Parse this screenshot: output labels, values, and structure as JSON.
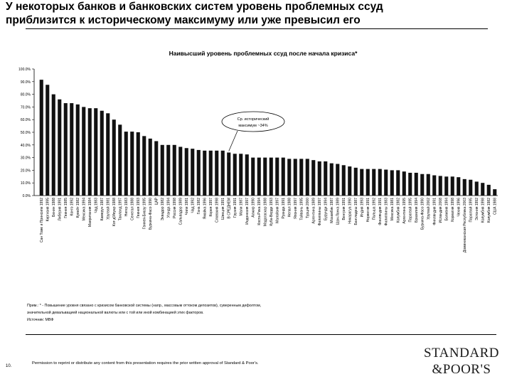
{
  "slide": {
    "title_line1": "У некоторых банков и банковских систем уровень проблемных ссуд",
    "title_line2": "приблизится к историческому максимуму или уже превысил его",
    "note_line1": "Прим.: * - Повышение уровня связано с кризисом банковской системы (напр., массовым оттоком депозитов), суверенным дефолтом,",
    "note_line2": "значительной девальвацией национальной валюты или с той или иной комбинацией этих факторов.",
    "source": "Источник: МВФ",
    "page_number": "10.",
    "permission": "Permission to reprint or distribute any content from this presentation requires the prior written approval of Standard & Poor's.",
    "logo_line1": "STANDARD",
    "logo_line2": "&POOR'S"
  },
  "chart_data": {
    "type": "bar",
    "title": "Наивысший уровень проблемных ссуд после начала кризиса*",
    "ylim": [
      0,
      100
    ],
    "y_ticks": [
      "0.0%",
      "10.0%",
      "20.0%",
      "30.0%",
      "40.0%",
      "50.0%",
      "60.0%",
      "70.0%",
      "80.0%",
      "90.0%",
      "100.0%"
    ],
    "grid": false,
    "annotation": {
      "text_line1": "Ср. исторический",
      "text_line2": "максимум ~34%",
      "value": 34
    },
    "categories": [
      "Сан Томе и Принсипе 1992",
      "Киргизия 1995",
      "Бенин 1988",
      "Либерия 1991",
      "Гвинея 1985",
      "Конго 1992",
      "Кувейт 1982",
      "Мексика 1994",
      "Мавритания 1984",
      "Чад 1983",
      "Камерун 1987",
      "Уругвай 1981",
      "Кот-д'Ивуар 1988",
      "Таиланд 1997",
      "Нигер 1983",
      "Сенегал 1988",
      "Гвинея 1993",
      "Гвинея-Бисау 1995",
      "Буркина-Фасо 1990",
      "ЦАР",
      "Эквадор 1982",
      "Уганда 1994",
      "Россия 1998",
      "Сальвадор 1989",
      "Чили 1981",
      "Чад 1992",
      "Гана 1982",
      "Ямайка 1996",
      "Корея 1997",
      "Словакия 1998",
      "Швеция 1991",
      "В СРЕДНЕМ",
      "Грузия 1991",
      "Мали 1987",
      "Индонезия 1997",
      "Алжир 1990",
      "Коста-Рика 1994",
      "Мадагаскар 1988",
      "Куба-Верде 1993",
      "Малайзия 1997",
      "Руанда 1991",
      "Непал 1988",
      "Япония 1997",
      "Тайвань 1995",
      "Турция 2000",
      "Аргентина 1989",
      "Филиппины 1997",
      "Бурунди 1994",
      "Мозамбик 1987",
      "Шри-Ланка 1989",
      "Венгрия 1991",
      "Никарагуа 1990",
      "Бангладеш 1987",
      "Индия 1993",
      "Норвегия 1991",
      "Польша 1992",
      "Финляндия 1991",
      "Филиппины 1983",
      "Мексика 1981",
      "Колумбия 1982",
      "Аргентина 1995",
      "Парагвай 1995",
      "Бразилия 1994",
      "Буркина-Фасо 1990",
      "Уругвай 2002",
      "Финляндия 1991",
      "Исландия 2008",
      "Боливия 1994",
      "Хорватия 1998",
      "Чехия 1996",
      "Доминиканская Республика 2003",
      "Парагвай 1995",
      "Эстония 1992",
      "Колумбия 1998",
      "Колумбия 1982",
      "США 1988"
    ],
    "values": [
      91.5,
      87.5,
      80,
      76,
      73,
      73,
      72,
      70,
      69,
      69,
      67,
      65,
      60,
      56,
      50.5,
      50.5,
      50,
      47,
      45,
      43,
      40,
      40,
      40,
      38.5,
      37.5,
      37,
      36,
      35.5,
      35.5,
      35.5,
      35.5,
      34,
      33,
      33,
      32.5,
      30,
      30,
      30,
      30,
      30,
      30,
      29,
      29,
      29,
      29,
      28,
      27,
      27,
      25.5,
      25,
      24,
      23,
      22,
      21,
      21,
      21,
      21,
      20.5,
      20,
      20,
      19,
      18,
      18,
      17,
      17,
      16,
      15.5,
      15,
      15,
      14.5,
      13,
      12.5,
      11,
      10,
      8.5,
      5
    ]
  }
}
